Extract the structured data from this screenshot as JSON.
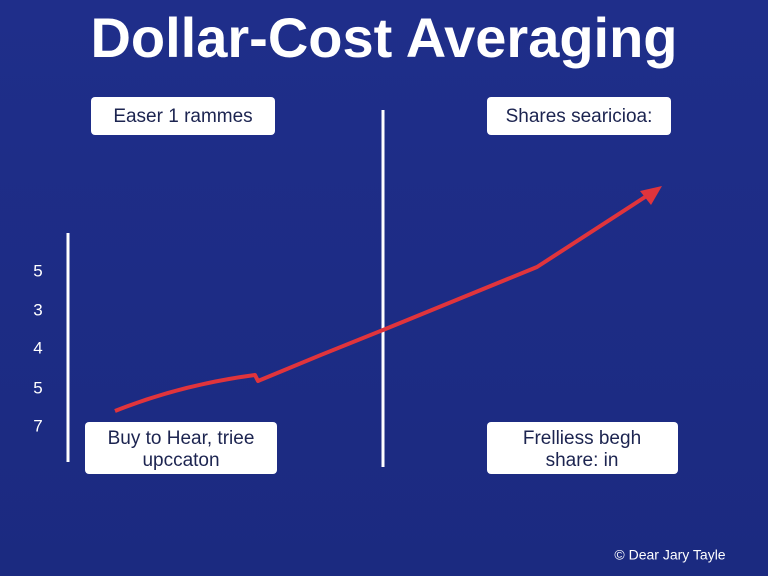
{
  "header": {
    "title": "Dollar-Cost Averaging"
  },
  "labels": {
    "top_left": "Easer 1 rammes",
    "top_right": "Shares searicioa:",
    "bottom_left": [
      "Buy to Hear, triee",
      "upccaton"
    ],
    "bottom_right": [
      "Frelliess begh",
      "share: in"
    ]
  },
  "axis": {
    "ticks": [
      "5",
      "3",
      "4",
      "5",
      "7"
    ]
  },
  "footer": "© Dear Jary Tayle"
}
